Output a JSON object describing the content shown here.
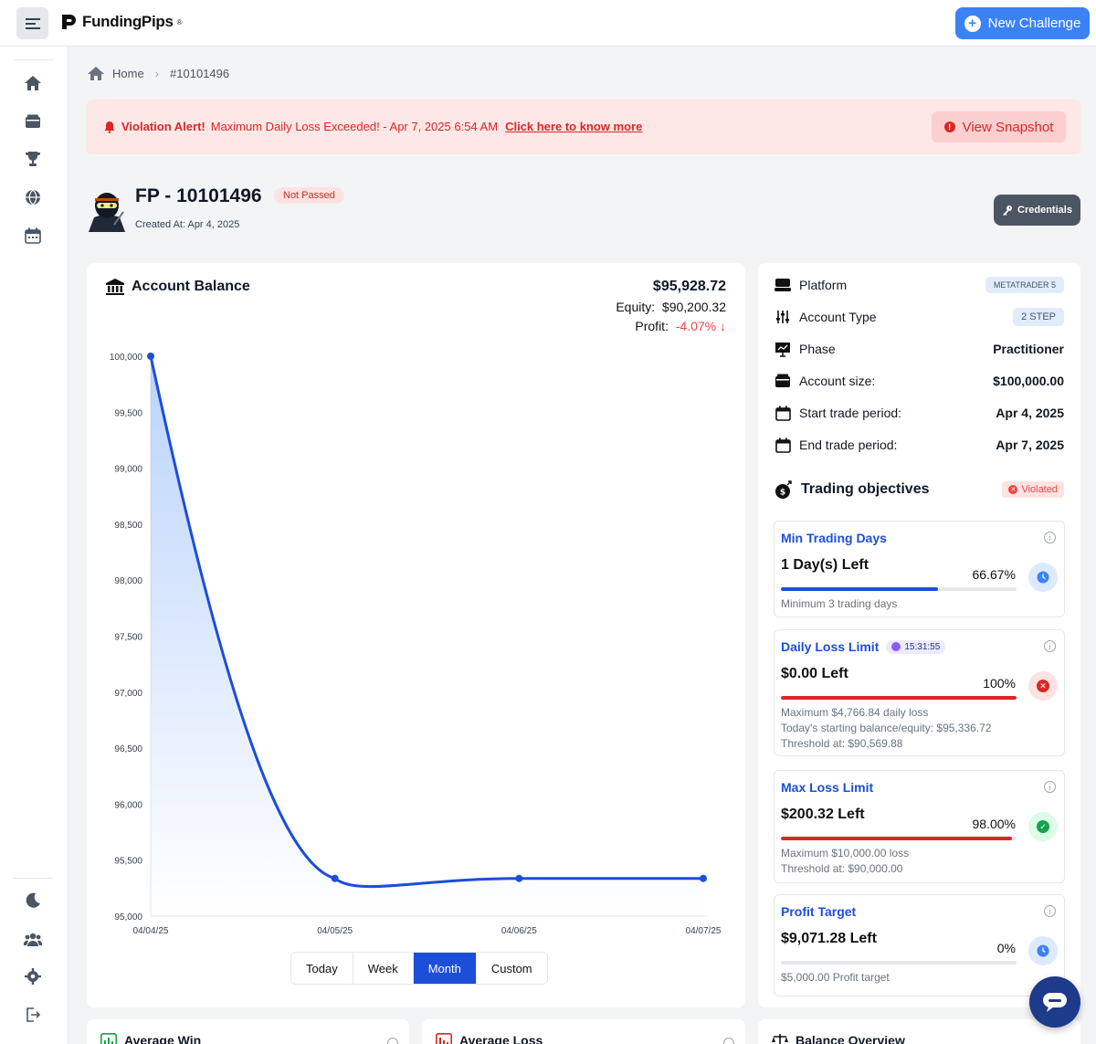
{
  "topbar": {
    "logo_text": "FundingPips",
    "logo_reg": "®",
    "new_challenge_label": "New Challenge",
    "new_challenge_plus": "+"
  },
  "breadcrumb": {
    "home": "Home",
    "separator": "›",
    "current": "#10101496"
  },
  "alert": {
    "title": "Violation Alert!",
    "message": "Maximum Daily Loss Exceeded! - Apr 7, 2025 6:54 AM",
    "link": "Click here to know more",
    "snapshot_label": "View Snapshot",
    "snapshot_icon_glyph": "!"
  },
  "account": {
    "title": "FP - 10101496",
    "status": "Not Passed",
    "created": "Created At: Apr 4, 2025",
    "credentials_label": "Credentials"
  },
  "balance": {
    "title": "Account Balance",
    "balance_value": "$95,928.72",
    "equity_label": "Equity:",
    "equity_value": "$90,200.32",
    "profit_label": "Profit:",
    "profit_value": "-4.07%",
    "profit_arrow": "↓"
  },
  "chart_data": {
    "type": "line",
    "title": "Account Balance",
    "x": [
      "04/04/25",
      "04/05/25",
      "04/06/25",
      "04/07/25"
    ],
    "series": [
      {
        "values": [
          100000,
          95336.72,
          95336.72,
          95336.72
        ]
      }
    ],
    "yticks": [
      "100,000",
      "99,500",
      "99,000",
      "98,500",
      "98,000",
      "97,500",
      "97,000",
      "96,500",
      "96,000",
      "95,500",
      "95,000"
    ],
    "ylim": [
      95000,
      100000
    ],
    "xlabel": "",
    "ylabel": "",
    "grid": false,
    "line_color": "#1d4ed8"
  },
  "range_tabs": [
    {
      "label": "Today",
      "active": false
    },
    {
      "label": "Week",
      "active": false
    },
    {
      "label": "Month",
      "active": true
    },
    {
      "label": "Custom",
      "active": false
    }
  ],
  "info": {
    "platform_label": "Platform",
    "platform_value": "METATRADER 5",
    "account_type_label": "Account Type",
    "account_type_value": "2 STEP",
    "phase_label": "Phase",
    "phase_value": "Practitioner",
    "account_size_label": "Account size:",
    "account_size_value": "$100,000.00",
    "start_label": "Start trade period:",
    "start_value": "Apr 4, 2025",
    "end_label": "End trade period:",
    "end_value": "Apr 7, 2025"
  },
  "objectives": {
    "title": "Trading objectives",
    "status": "Violated",
    "status_x": "✕",
    "info_glyph": "i",
    "items": [
      {
        "name": "Min Trading Days",
        "left": "1 Day(s) Left",
        "percent": "66.67%",
        "progress": 0.6667,
        "bar_color": "#1d4ed8",
        "notes": [
          "Minimum 3 trading days"
        ],
        "status_icon": "clock-icon"
      },
      {
        "name": "Daily Loss Limit",
        "timer": "15:31:55",
        "left": "$0.00 Left",
        "percent": "100%",
        "progress": 1.0,
        "bar_color": "#dc2626",
        "notes": [
          "Maximum $4,766.84 daily loss",
          "Today's starting balance/equity: $95,336.72",
          "Threshold at: $90,569.88"
        ],
        "status_icon": "x-circle-icon",
        "status_glyph": "✕"
      },
      {
        "name": "Max Loss Limit",
        "left": "$200.32 Left",
        "percent": "98.00%",
        "progress": 0.98,
        "bar_color": "#dc2626",
        "notes": [
          "Maximum $10,000.00 loss",
          "Threshold at: $90,000.00"
        ],
        "status_icon": "check-circle-icon",
        "status_glyph": "✓"
      },
      {
        "name": "Profit Target",
        "left": "$9,071.28 Left",
        "percent": "0%",
        "progress": 0,
        "bar_color": "#1d4ed8",
        "notes": [
          "$5,000.00 Profit target"
        ],
        "status_icon": "clock-icon"
      }
    ]
  },
  "bottom_cards": {
    "average_win": "Average Win",
    "average_loss": "Average Loss",
    "balance_overview": "Balance Overview"
  }
}
